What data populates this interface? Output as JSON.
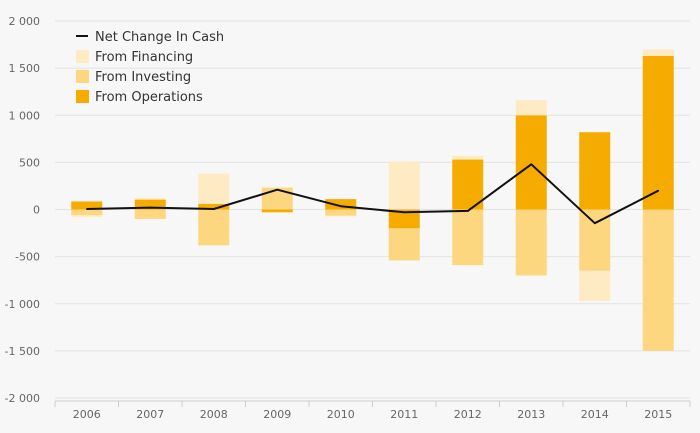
{
  "chart_data": {
    "type": "bar",
    "stacked": true,
    "categories": [
      "2006",
      "2007",
      "2008",
      "2009",
      "2010",
      "2011",
      "2012",
      "2013",
      "2014",
      "2015"
    ],
    "series": [
      {
        "name": "From Operations",
        "kind": "bar",
        "color": "#f6ab00",
        "values": [
          85,
          105,
          60,
          -30,
          110,
          -200,
          530,
          1000,
          820,
          1630
        ]
      },
      {
        "name": "From Investing",
        "kind": "bar",
        "color": "#fdd680",
        "values": [
          -60,
          -100,
          -380,
          230,
          -65,
          -340,
          -590,
          -700,
          -650,
          -1500
        ]
      },
      {
        "name": "From Financing",
        "kind": "bar",
        "color": "#feeac3",
        "values": [
          -20,
          15,
          320,
          10,
          -10,
          510,
          40,
          160,
          -320,
          70
        ]
      },
      {
        "name": "Net Change In Cash",
        "kind": "line",
        "color": "#111111",
        "values": [
          5,
          20,
          5,
          210,
          35,
          -30,
          -15,
          480,
          -145,
          200
        ]
      }
    ],
    "ylim": [
      -2000,
      2000
    ],
    "yticks": [
      2000,
      1500,
      1000,
      500,
      0,
      -500,
      -1000,
      -1500,
      -2000
    ],
    "ytick_labels": [
      "2 000",
      "1 500",
      "1 000",
      "500",
      "0",
      "-500",
      "-1 000",
      "-1 500",
      "-2 000"
    ],
    "grid": true,
    "legend_position": "top-left",
    "legend_order": [
      "Net Change In Cash",
      "From Financing",
      "From Investing",
      "From Operations"
    ],
    "title": "",
    "xlabel": "",
    "ylabel": ""
  }
}
